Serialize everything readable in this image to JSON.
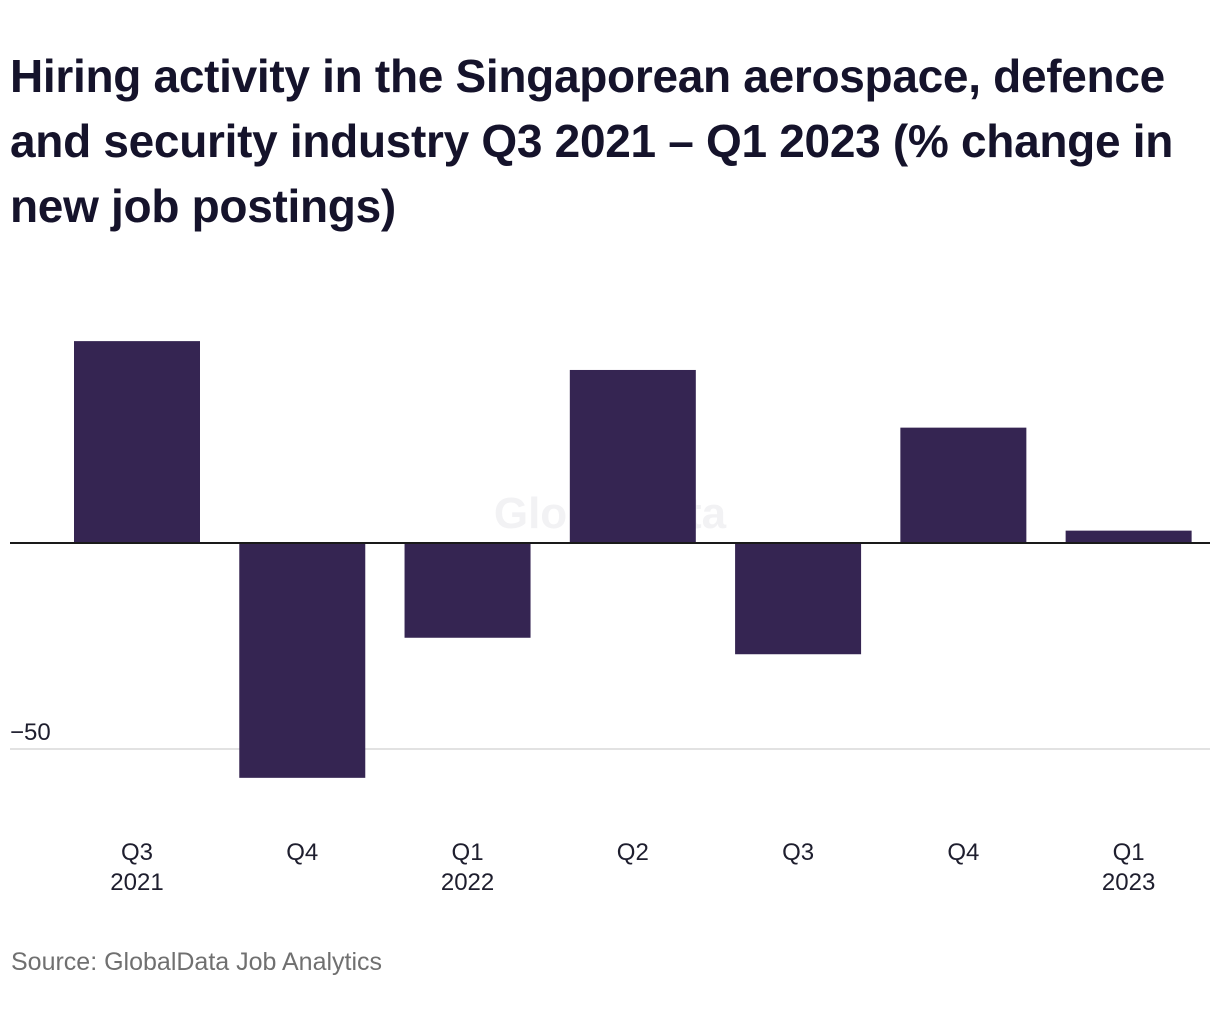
{
  "title": "Hiring activity in the Singaporean aerospace, defence and security industry Q3 2021 – Q1 2023 (% change in new job postings)",
  "watermark": "GlobalData",
  "source": "Source: GlobalData Job Analytics",
  "colors": {
    "bar": "#352552",
    "gridline": "#d9d9d9",
    "zero_line": "#1a1a1a"
  },
  "chart_data": {
    "type": "bar",
    "title": "Hiring activity in the Singaporean aerospace, defence and security industry Q3 2021 – Q1 2023 (% change in new job postings)",
    "categories": [
      {
        "label": "Q3",
        "year": "2021"
      },
      {
        "label": "Q4",
        "year": ""
      },
      {
        "label": "Q1",
        "year": "2022"
      },
      {
        "label": "Q2",
        "year": ""
      },
      {
        "label": "Q3",
        "year": ""
      },
      {
        "label": "Q4",
        "year": ""
      },
      {
        "label": "Q1",
        "year": "2023"
      }
    ],
    "values": [
      49,
      -57,
      -23,
      42,
      -27,
      28,
      3
    ],
    "ylim": [
      -66,
      54
    ],
    "yticks": [
      {
        "value": -50,
        "label": "−50"
      }
    ],
    "xlabel": "",
    "ylabel": "",
    "grid": true,
    "legend": "none"
  }
}
